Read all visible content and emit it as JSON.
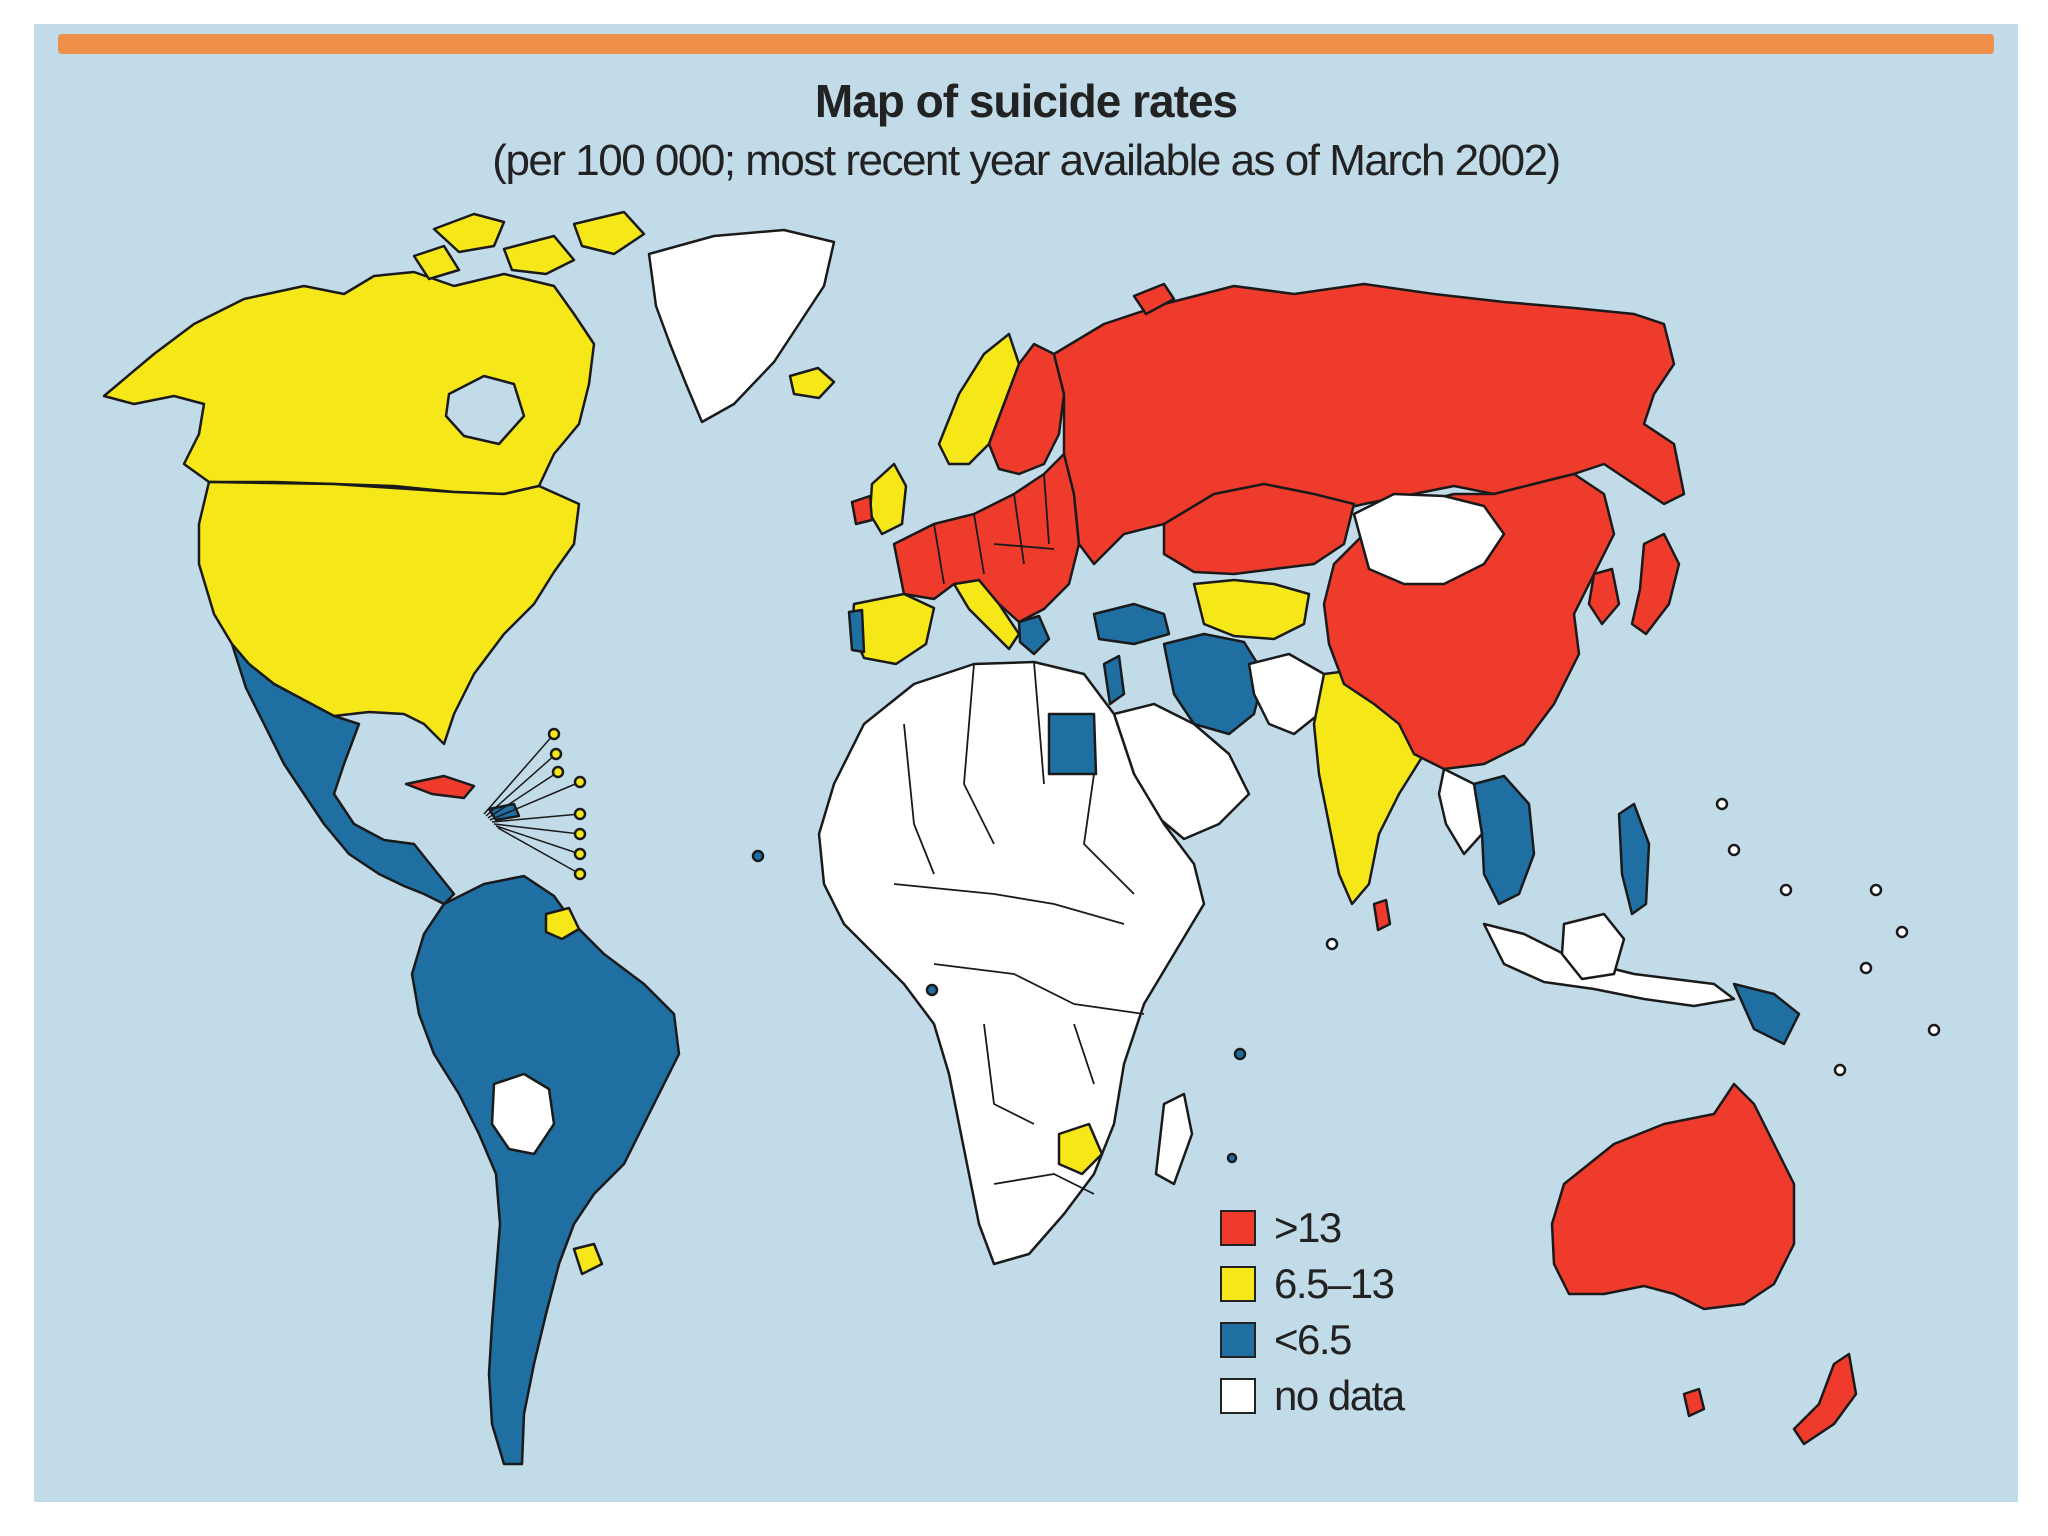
{
  "map": {
    "title": "Map of suicide rates",
    "subtitle": "(per 100 000; most recent year available as of March 2002)",
    "colors": {
      "ocean": "#c2dbe9",
      "header_bar": "#ef8f4a",
      "high": "#ef3b2c",
      "medium": "#f6e818",
      "low": "#1f6fa3",
      "no_data": "#ffffff",
      "border": "#1a1a1a"
    },
    "legend": [
      {
        "label": ">13",
        "color": "#ef3b2c"
      },
      {
        "label": "6.5–13",
        "color": "#f6e818"
      },
      {
        "label": "<6.5",
        "color": "#1f6fa3"
      },
      {
        "label": "no data",
        "color": "#ffffff"
      }
    ]
  }
}
